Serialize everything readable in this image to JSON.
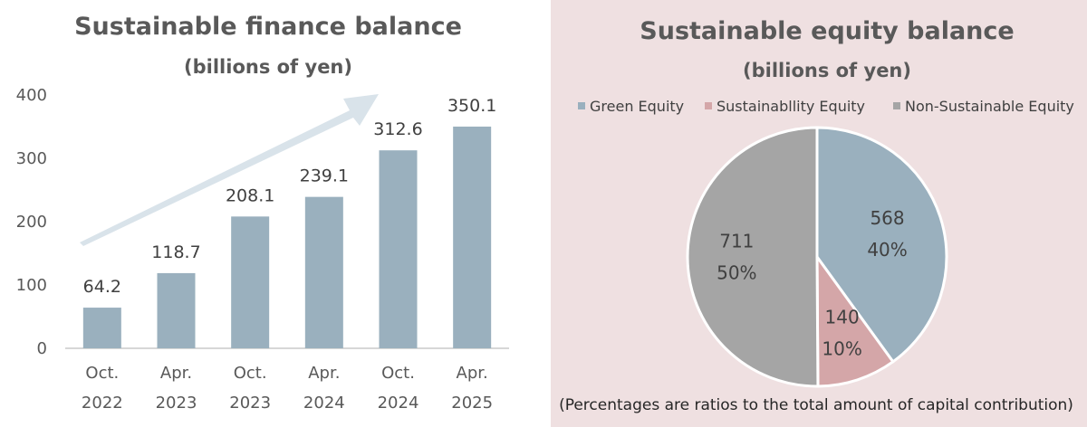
{
  "chart_data": [
    {
      "type": "bar",
      "title": "Sustainable finance balance",
      "subtitle": "(billions of yen)",
      "categories": [
        [
          "Oct.",
          "2022"
        ],
        [
          "Apr.",
          "2023"
        ],
        [
          "Oct.",
          "2023"
        ],
        [
          "Apr.",
          "2024"
        ],
        [
          "Oct.",
          "2024"
        ],
        [
          "Apr.",
          "2025"
        ]
      ],
      "values": [
        64.2,
        118.7,
        208.1,
        239.1,
        312.6,
        350.1
      ],
      "data_labels": [
        "64.2",
        "118.7",
        "208.1",
        "239.1",
        "312.6",
        "350.1"
      ],
      "yticks": [
        "0",
        "100",
        "200",
        "300",
        "400"
      ],
      "ylim": [
        0,
        400
      ],
      "grid": false,
      "bar_color": "#9ab0be",
      "trend_arrow_color": "#d9e3ea"
    },
    {
      "type": "pie",
      "title": "Sustainable equity balance",
      "subtitle": "(billions of yen)",
      "legend_position": "top",
      "slices": [
        {
          "label": "Green Equity",
          "value": 568,
          "value_label": "568",
          "percent_label": "40%",
          "color": "#9ab0be"
        },
        {
          "label": "Sustainabllity Equity",
          "value": 140,
          "value_label": "140",
          "percent_label": "10%",
          "color": "#d4a6a8"
        },
        {
          "label": "Non-Sustainable Equity",
          "value": 711,
          "value_label": "711",
          "percent_label": "50%",
          "color": "#a5a5a5"
        }
      ],
      "note": "(Percentages are ratios to the total amount of capital contribution)"
    }
  ]
}
